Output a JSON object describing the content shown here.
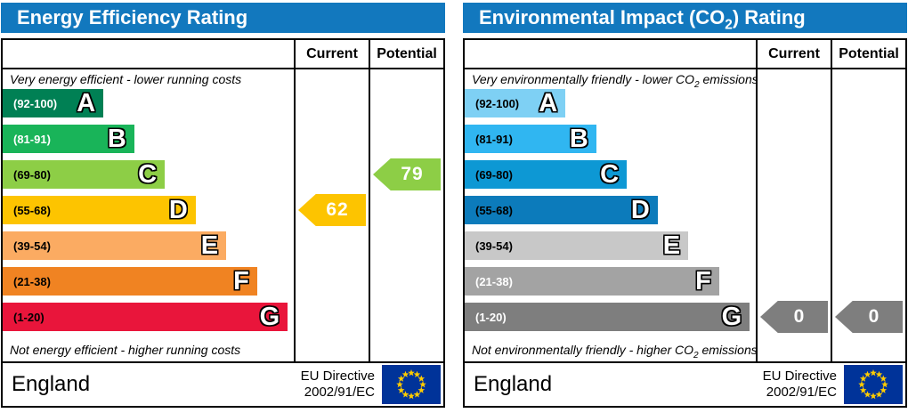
{
  "theme": {
    "header_color": "#1278be",
    "flag_blue": "#003399",
    "flag_star_yellow": "#ffcc00",
    "border_color": "#000000"
  },
  "panels": [
    {
      "id": "energy-efficiency",
      "title": {
        "pre": "Energy Efficiency Rating",
        "sub": "",
        "post": ""
      },
      "columns": {
        "current": "Current",
        "potential": "Potential"
      },
      "top_note": {
        "pre": "Very energy efficient - lower running costs",
        "sub": "",
        "post": ""
      },
      "bottom_note": {
        "pre": "Not energy efficient - higher running costs",
        "sub": "",
        "post": ""
      },
      "bands": [
        {
          "letter": "A",
          "range": "(92-100)",
          "color": "#008054",
          "text_color": "#ffffff",
          "width_pct": 34.6
        },
        {
          "letter": "B",
          "range": "(81-91)",
          "color": "#19b459",
          "text_color": "#ffffff",
          "width_pct": 45.2
        },
        {
          "letter": "C",
          "range": "(69-80)",
          "color": "#8dce46",
          "text_color": "#000000",
          "width_pct": 55.7
        },
        {
          "letter": "D",
          "range": "(55-68)",
          "color": "#fdc400",
          "text_color": "#000000",
          "width_pct": 66.3
        },
        {
          "letter": "E",
          "range": "(39-54)",
          "color": "#fbab62",
          "text_color": "#000000",
          "width_pct": 76.8
        },
        {
          "letter": "F",
          "range": "(21-38)",
          "color": "#f08322",
          "text_color": "#000000",
          "width_pct": 87.4
        },
        {
          "letter": "G",
          "range": "(1-20)",
          "color": "#e9153b",
          "text_color": "#000000",
          "width_pct": 97.9
        }
      ],
      "current": {
        "value": "62",
        "band_index": 3,
        "color": "#fdc400"
      },
      "potential": {
        "value": "79",
        "band_index": 2,
        "color": "#8dce46"
      },
      "footer": {
        "region": "England",
        "directive_line1": "EU Directive",
        "directive_line2": "2002/91/EC"
      }
    },
    {
      "id": "environmental-impact",
      "title": {
        "pre": "Environmental Impact (CO",
        "sub": "2",
        "post": ") Rating"
      },
      "columns": {
        "current": "Current",
        "potential": "Potential"
      },
      "top_note": {
        "pre": "Very environmentally friendly - lower CO",
        "sub": "2",
        "post": " emissions"
      },
      "bottom_note": {
        "pre": "Not environmentally friendly - higher CO",
        "sub": "2",
        "post": " emissions"
      },
      "bands": [
        {
          "letter": "A",
          "range": "(92-100)",
          "color": "#7ed0f4",
          "text_color": "#000000",
          "width_pct": 34.6
        },
        {
          "letter": "B",
          "range": "(81-91)",
          "color": "#30b6f1",
          "text_color": "#000000",
          "width_pct": 45.2
        },
        {
          "letter": "C",
          "range": "(69-80)",
          "color": "#0d98d4",
          "text_color": "#000000",
          "width_pct": 55.7
        },
        {
          "letter": "D",
          "range": "(55-68)",
          "color": "#0c7bbb",
          "text_color": "#000000",
          "width_pct": 66.3
        },
        {
          "letter": "E",
          "range": "(39-54)",
          "color": "#c8c8c8",
          "text_color": "#000000",
          "width_pct": 76.8
        },
        {
          "letter": "F",
          "range": "(21-38)",
          "color": "#a3a3a3",
          "text_color": "#ffffff",
          "width_pct": 87.4
        },
        {
          "letter": "G",
          "range": "(1-20)",
          "color": "#7e7e7e",
          "text_color": "#ffffff",
          "width_pct": 97.9
        }
      ],
      "current": {
        "value": "0",
        "band_index": 6,
        "color": "#7e7e7e"
      },
      "potential": {
        "value": "0",
        "band_index": 6,
        "color": "#7e7e7e"
      },
      "footer": {
        "region": "England",
        "directive_line1": "EU Directive",
        "directive_line2": "2002/91/EC"
      }
    }
  ],
  "chart_data": [
    {
      "type": "bar",
      "title": "Energy Efficiency Rating",
      "categories": [
        "A",
        "B",
        "C",
        "D",
        "E",
        "F",
        "G"
      ],
      "band_ranges": [
        "92-100",
        "81-91",
        "69-80",
        "55-68",
        "39-54",
        "21-38",
        "1-20"
      ],
      "bar_width_pct": [
        34.6,
        45.2,
        55.7,
        66.3,
        76.8,
        87.4,
        97.9
      ],
      "current_value": 62,
      "current_band": "D",
      "potential_value": 79,
      "potential_band": "C",
      "top_label": "Very energy efficient - lower running costs",
      "bottom_label": "Not energy efficient - higher running costs",
      "legend_position": "columns-right",
      "columns": [
        "Current",
        "Potential"
      ]
    },
    {
      "type": "bar",
      "title": "Environmental Impact (CO2) Rating",
      "categories": [
        "A",
        "B",
        "C",
        "D",
        "E",
        "F",
        "G"
      ],
      "band_ranges": [
        "92-100",
        "81-91",
        "69-80",
        "55-68",
        "39-54",
        "21-38",
        "1-20"
      ],
      "bar_width_pct": [
        34.6,
        45.2,
        55.7,
        66.3,
        76.8,
        87.4,
        97.9
      ],
      "current_value": 0,
      "current_band": "G",
      "potential_value": 0,
      "potential_band": "G",
      "top_label": "Very environmentally friendly - lower CO2 emissions",
      "bottom_label": "Not environmentally friendly - higher CO2 emissions",
      "legend_position": "columns-right",
      "columns": [
        "Current",
        "Potential"
      ]
    }
  ]
}
